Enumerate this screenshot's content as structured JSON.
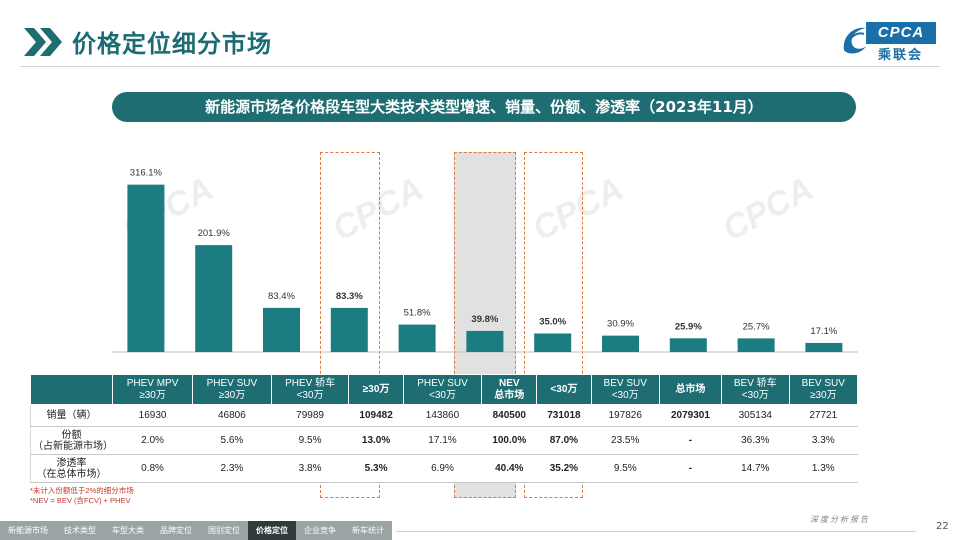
{
  "header": {
    "title": "价格定位细分市场",
    "logo_text": "CPCA",
    "logo_sub": "乘联会"
  },
  "banner": {
    "text": "新能源市场各价格段车型大类技术类型增速、销量、份额、渗透率（2023年11月）"
  },
  "watermark": "CPCA",
  "colors": {
    "accent": "#1d6d72",
    "bar": "#1b7d82",
    "highlight_dash": "#e07a3c"
  },
  "chart_data": {
    "type": "bar",
    "categories": [
      "PHEV MPV ≥30万",
      "PHEV SUV ≥30万",
      "PHEV 轿车 <30万",
      "≥30万",
      "PHEV SUV <30万",
      "NEV 总市场",
      "<30万",
      "BEV SUV <30万",
      "总市场",
      "BEV 轿车 <30万",
      "BEV SUV ≥30万"
    ],
    "series": [
      {
        "values": [
          316.1,
          201.9,
          83.4,
          83.3,
          51.8,
          39.8,
          35.0,
          30.9,
          25.9,
          25.7,
          17.1
        ]
      }
    ],
    "data_labels": [
      "316.1%",
      "201.9%",
      "83.4%",
      "83.3%",
      "51.8%",
      "39.8%",
      "35.0%",
      "30.9%",
      "25.9%",
      "25.7%",
      "17.1%"
    ],
    "bold_labels": [
      false,
      false,
      false,
      true,
      false,
      true,
      true,
      false,
      true,
      false,
      false
    ],
    "ylim": [
      0,
      340
    ],
    "unit": "%"
  },
  "table": {
    "header": [
      [
        "PHEV MPV",
        "≥30万"
      ],
      [
        "PHEV SUV",
        "≥30万"
      ],
      [
        "PHEV 轿车",
        "<30万"
      ],
      [
        "≥30万",
        ""
      ],
      [
        "PHEV SUV",
        "<30万"
      ],
      [
        "NEV",
        "总市场"
      ],
      [
        "<30万",
        ""
      ],
      [
        "BEV SUV",
        "<30万"
      ],
      [
        "总市场",
        ""
      ],
      [
        "BEV 轿车",
        "<30万"
      ],
      [
        "BEV SUV",
        "≥30万"
      ]
    ],
    "bold_cols": [
      false,
      false,
      false,
      true,
      false,
      true,
      true,
      false,
      true,
      false,
      false
    ],
    "rows": [
      {
        "label": [
          "销量（辆）"
        ],
        "cells": [
          "16930",
          "46806",
          "79989",
          "109482",
          "143860",
          "840500",
          "731018",
          "197826",
          "2079301",
          "305134",
          "27721"
        ]
      },
      {
        "label": [
          "份额",
          "（占新能源市场）"
        ],
        "cells": [
          "2.0%",
          "5.6%",
          "9.5%",
          "13.0%",
          "17.1%",
          "100.0%",
          "87.0%",
          "23.5%",
          "-",
          "36.3%",
          "3.3%"
        ]
      },
      {
        "label": [
          "渗透率",
          "（在总体市场）"
        ],
        "cells": [
          "0.8%",
          "2.3%",
          "3.8%",
          "5.3%",
          "6.9%",
          "40.4%",
          "35.2%",
          "9.5%",
          "-",
          "14.7%",
          "1.3%"
        ]
      }
    ]
  },
  "notes": [
    "*未计入份额低于2%的细分市场",
    "*NEV = BEV (含FCV) + PHEV"
  ],
  "nav": {
    "items": [
      "新能源市场",
      "技术类型",
      "车型大类",
      "品牌定位",
      "国别定位",
      "价格定位",
      "企业竞争",
      "新车统计"
    ],
    "active_index": 5
  },
  "footer": {
    "tagline": "深度分析报告",
    "page_number": "22"
  }
}
